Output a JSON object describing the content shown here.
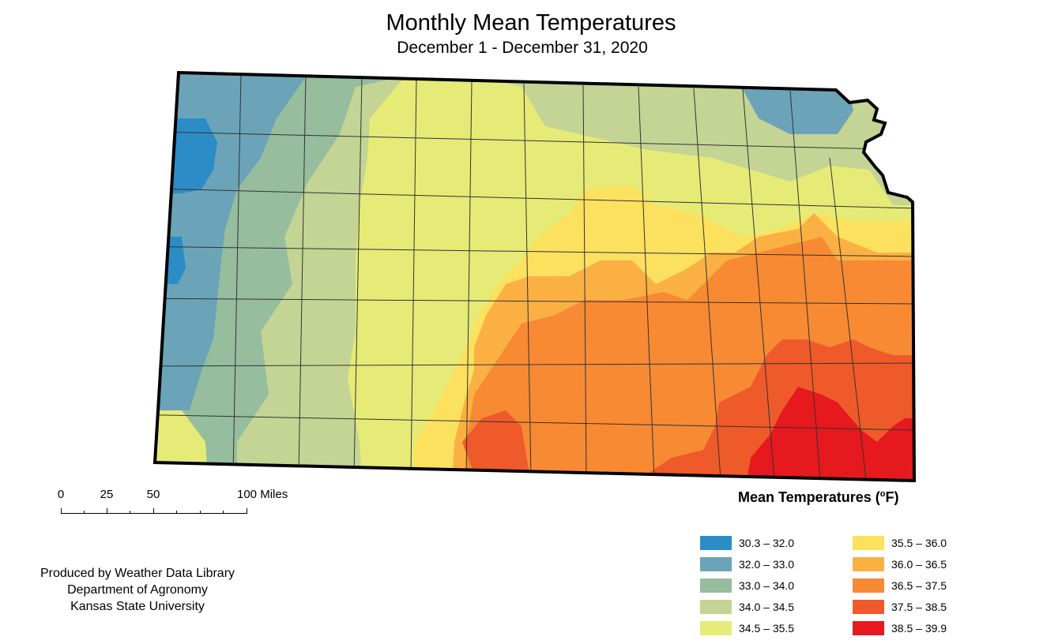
{
  "header": {
    "title": "Monthly Mean Temperatures",
    "subtitle": "December 1 - December 31, 2020"
  },
  "scale_bar": {
    "labels": [
      "0",
      "25",
      "50",
      "100 Miles"
    ]
  },
  "credits": {
    "line1": "Produced by Weather Data Library",
    "line2": "Department of Agronomy",
    "line3": "Kansas State University"
  },
  "legend": {
    "title": "Mean Temperatures (",
    "degree": "o",
    "unit": "F)",
    "classes": [
      {
        "label": "30.3 – 32.0",
        "color": "#2c8cc6"
      },
      {
        "label": "32.0 – 33.0",
        "color": "#6ba4b8"
      },
      {
        "label": "33.0 – 34.0",
        "color": "#96bd9e"
      },
      {
        "label": "34.0 – 34.5",
        "color": "#c4d494"
      },
      {
        "label": "34.5 – 35.5",
        "color": "#e6eb78"
      },
      {
        "label": "35.5 – 36.0",
        "color": "#fbe15e"
      },
      {
        "label": "36.0 – 36.5",
        "color": "#fbb044"
      },
      {
        "label": "36.5 – 37.5",
        "color": "#f88a34"
      },
      {
        "label": "37.5 – 38.5",
        "color": "#ef5a2a"
      },
      {
        "label": "38.5 – 39.9",
        "color": "#e6191e"
      }
    ]
  }
}
